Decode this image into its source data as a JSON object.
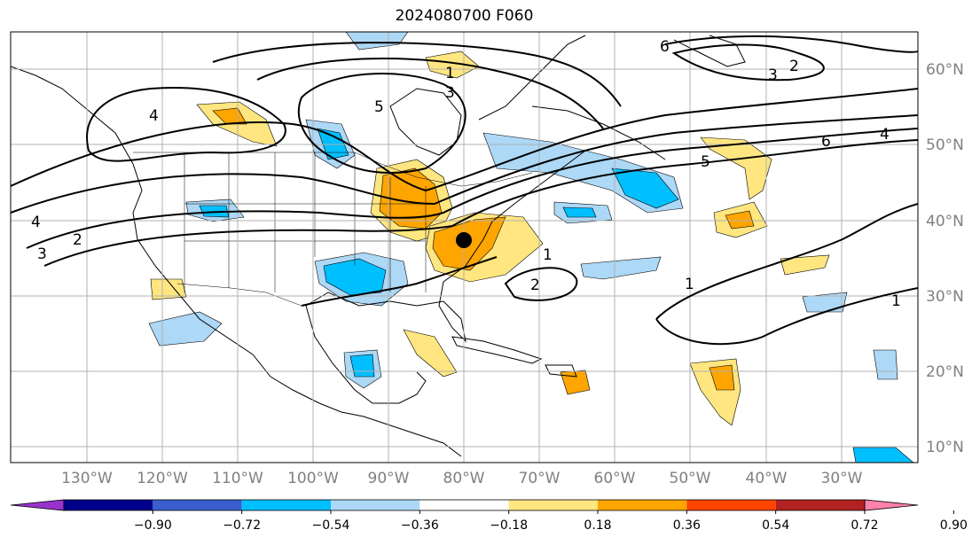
{
  "title": "2024080700 F060",
  "lat_labels": [
    "60°N",
    "50°N",
    "40°N",
    "30°N",
    "20°N",
    "10°N"
  ],
  "lon_labels": [
    "130°W",
    "120°W",
    "110°W",
    "100°W",
    "90°W",
    "80°W",
    "70°W",
    "60°W",
    "50°W",
    "40°W",
    "30°W"
  ],
  "contour_labels": [
    "1",
    "2",
    "3",
    "4",
    "5",
    "6"
  ],
  "colorbar": {
    "ticks": [
      "−0.90",
      "−0.72",
      "−0.54",
      "−0.36",
      "−0.18",
      "0.18",
      "0.36",
      "0.54",
      "0.72",
      "0.90"
    ],
    "colors": [
      "#9932cc",
      "#00008b",
      "#3a5fcd",
      "#00bfff",
      "#add8f6",
      "#ffffff",
      "#ffe680",
      "#ffa500",
      "#ff4500",
      "#b22222",
      "#ff82ab"
    ]
  },
  "colors": {
    "land": "#ffffff",
    "grid": "#b0b0b0",
    "contour": "#000000"
  }
}
